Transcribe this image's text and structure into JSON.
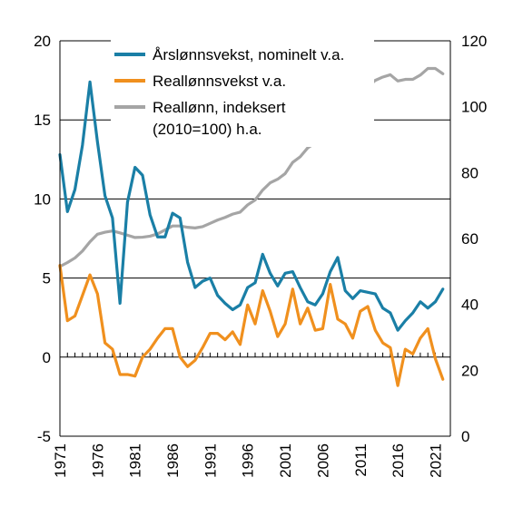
{
  "chart_data": {
    "type": "line",
    "x_start": 1971,
    "x_end": 2023,
    "x_ticks": [
      "1971",
      "1976",
      "1981",
      "1986",
      "1991",
      "1996",
      "2001",
      "2006",
      "2011",
      "2016",
      "2021"
    ],
    "left_axis": {
      "min": -5,
      "max": 20,
      "ticks": [
        "-5",
        "0",
        "5",
        "10",
        "15",
        "20"
      ]
    },
    "right_axis": {
      "min": 0,
      "max": 120,
      "ticks": [
        "0",
        "20",
        "40",
        "60",
        "80",
        "100",
        "120"
      ]
    },
    "legend": [
      {
        "label": "Årslønnsvekst, nominelt v.a.",
        "color": "#1a7fa6"
      },
      {
        "label": "Reallønnsvekst v.a.",
        "color": "#f0901e"
      },
      {
        "label": "Reallønn, indeksert",
        "label2": "(2010=100) h.a.",
        "color": "#a5a5a5"
      }
    ],
    "series": [
      {
        "name": "Årslønnsvekst, nominelt v.a.",
        "axis": "left",
        "color": "#1a7fa6",
        "x": [
          1971,
          1972,
          1973,
          1974,
          1975,
          1976,
          1977,
          1978,
          1979,
          1980,
          1981,
          1982,
          1983,
          1984,
          1985,
          1986,
          1987,
          1988,
          1989,
          1990,
          1991,
          1992,
          1993,
          1994,
          1995,
          1996,
          1997,
          1998,
          1999,
          2000,
          2001,
          2002,
          2003,
          2004,
          2005,
          2006,
          2007,
          2008,
          2009,
          2010,
          2011,
          2012,
          2013,
          2014,
          2015,
          2016,
          2017,
          2018,
          2019,
          2020,
          2021,
          2022
        ],
        "values": [
          12.8,
          9.2,
          10.6,
          13.4,
          17.4,
          13.6,
          10.2,
          8.8,
          3.4,
          9.8,
          12.0,
          11.5,
          9.0,
          7.6,
          7.6,
          9.1,
          8.8,
          6.0,
          4.4,
          4.8,
          5.0,
          3.9,
          3.4,
          3.0,
          3.3,
          4.4,
          4.7,
          6.5,
          5.3,
          4.5,
          5.3,
          5.4,
          4.4,
          3.5,
          3.3,
          4.0,
          5.4,
          6.3,
          4.2,
          3.7,
          4.2,
          4.1,
          4.0,
          3.1,
          2.8,
          1.7,
          2.3,
          2.8,
          3.5,
          3.1,
          3.5,
          4.3
        ]
      },
      {
        "name": "Reallønnsvekst v.a.",
        "axis": "left",
        "color": "#f0901e",
        "x": [
          1971,
          1972,
          1973,
          1974,
          1975,
          1976,
          1977,
          1978,
          1979,
          1980,
          1981,
          1982,
          1983,
          1984,
          1985,
          1986,
          1987,
          1988,
          1989,
          1990,
          1991,
          1992,
          1993,
          1994,
          1995,
          1996,
          1997,
          1998,
          1999,
          2000,
          2001,
          2002,
          2003,
          2004,
          2005,
          2006,
          2007,
          2008,
          2009,
          2010,
          2011,
          2012,
          2013,
          2014,
          2015,
          2016,
          2017,
          2018,
          2019,
          2020,
          2021,
          2022
        ],
        "values": [
          5.8,
          2.3,
          2.6,
          3.9,
          5.2,
          4.0,
          0.9,
          0.5,
          -1.1,
          -1.1,
          -1.2,
          0.0,
          0.5,
          1.2,
          1.8,
          1.8,
          0.0,
          -0.6,
          -0.2,
          0.6,
          1.5,
          1.5,
          1.1,
          1.6,
          0.8,
          3.3,
          2.1,
          4.2,
          2.9,
          1.3,
          2.1,
          4.3,
          2.1,
          3.1,
          1.7,
          1.8,
          4.6,
          2.4,
          2.1,
          1.2,
          2.9,
          3.2,
          1.7,
          0.9,
          0.6,
          -1.8,
          0.5,
          0.2,
          1.2,
          1.8,
          -0.1,
          -1.4
        ]
      },
      {
        "name": "Reallønn, indeksert (2010=100) h.a.",
        "axis": "right",
        "color": "#a5a5a5",
        "x": [
          1971,
          1972,
          1973,
          1974,
          1975,
          1976,
          1977,
          1978,
          1979,
          1980,
          1981,
          1982,
          1983,
          1984,
          1985,
          1986,
          1987,
          1988,
          1989,
          1990,
          1991,
          1992,
          1993,
          1994,
          1995,
          1996,
          1997,
          1998,
          1999,
          2000,
          2001,
          2002,
          2003,
          2004,
          2005,
          2006,
          2007,
          2008,
          2009,
          2010,
          2011,
          2012,
          2013,
          2014,
          2015,
          2016,
          2017,
          2018,
          2019,
          2020,
          2021,
          2022
        ],
        "values": [
          51.5,
          52.7,
          54.1,
          56.2,
          59.0,
          61.3,
          61.9,
          62.3,
          61.7,
          61.0,
          60.3,
          60.4,
          60.7,
          61.4,
          62.6,
          63.8,
          63.8,
          63.4,
          63.2,
          63.6,
          64.6,
          65.6,
          66.4,
          67.4,
          68.0,
          70.2,
          71.7,
          74.7,
          76.9,
          78.0,
          79.7,
          83.1,
          84.8,
          87.5,
          89.0,
          90.6,
          94.7,
          97.0,
          99.0,
          100.0,
          102.8,
          106.0,
          108.0,
          109.0,
          109.7,
          107.8,
          108.3,
          108.3,
          109.6,
          111.6,
          111.6,
          110.0
        ]
      }
    ]
  }
}
